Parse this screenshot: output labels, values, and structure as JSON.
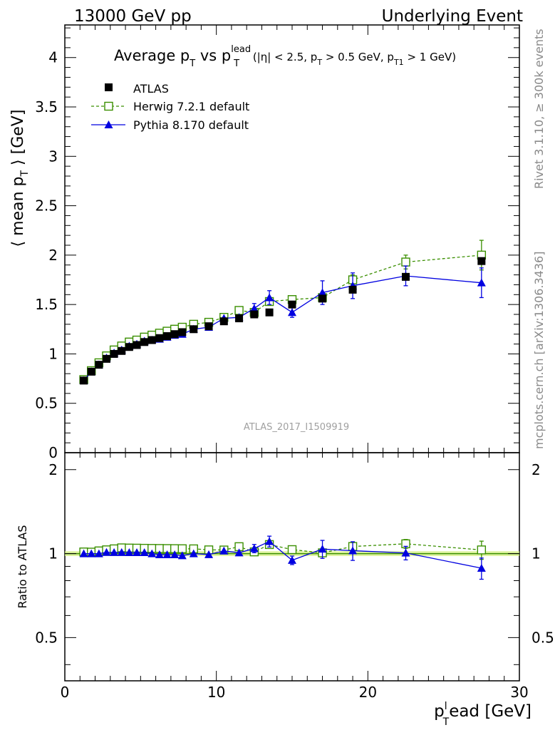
{
  "header": {
    "left": "13000 GeV pp",
    "right": "Underlying Event"
  },
  "plot_title": {
    "main": "Average p",
    "main_sub": "T",
    "vs": " vs p",
    "vs_sup": "lead",
    "vs_sub": "T",
    "cond_1": " (|η| < 2.5, p",
    "cond_sub1": "T",
    "cond_2": " > 0.5 GeV, p",
    "cond_sub2": "T1",
    "cond_3": " > 1 GeV)"
  },
  "watermark": "ATLAS_2017_I1509919",
  "side_text": {
    "rivet": "Rivet 3.1.10, ≥ 300k events",
    "mcplots": "mcplots.cern.ch [arXiv:1306.3436]"
  },
  "axes": {
    "ylabel_main_1": "⟨ mean p",
    "ylabel_main_sub": "T",
    "ylabel_main_2": " ⟩ [GeV]",
    "ylabel_ratio": "Ratio to ATLAS",
    "xlabel_1": "p",
    "xlabel_sup": "l",
    "xlabel_sub": "T",
    "xlabel_2": "ead [GeV]",
    "x_ticks": [
      "0",
      "10",
      "20",
      "30"
    ],
    "y_main_ticks": [
      "0",
      "0.5",
      "1",
      "1.5",
      "2",
      "2.5",
      "3",
      "3.5",
      "4"
    ],
    "y_ratio_ticks": [
      "0.5",
      "1",
      "2"
    ]
  },
  "legend": {
    "atlas": "ATLAS",
    "herwig": "Herwig 7.2.1 default",
    "pythia": "Pythia 8.170 default"
  },
  "colors": {
    "atlas": "#000000",
    "herwig": "#3a8f00",
    "pythia": "#0000e0",
    "band": "#d4f07a"
  },
  "chart_data": {
    "type": "scatter",
    "xlim": [
      0,
      30
    ],
    "ylim_main": [
      0,
      4.33
    ],
    "ylim_ratio": [
      0.35,
      2.3
    ],
    "log_ratio": true,
    "x": [
      1.25,
      1.75,
      2.25,
      2.75,
      3.25,
      3.75,
      4.25,
      4.75,
      5.25,
      5.75,
      6.25,
      6.75,
      7.25,
      7.75,
      8.5,
      9.5,
      10.5,
      11.5,
      12.5,
      13.5,
      15.0,
      17.0,
      19.0,
      22.5,
      27.5
    ],
    "series": [
      {
        "name": "ATLAS",
        "values": [
          0.73,
          0.82,
          0.89,
          0.95,
          1.0,
          1.03,
          1.07,
          1.09,
          1.12,
          1.14,
          1.16,
          1.18,
          1.2,
          1.22,
          1.25,
          1.28,
          1.33,
          1.36,
          1.4,
          1.42,
          1.5,
          1.56,
          1.65,
          1.78,
          1.94
        ]
      },
      {
        "name": "Herwig 7.2.1 default",
        "values": [
          0.74,
          0.83,
          0.91,
          0.98,
          1.04,
          1.08,
          1.12,
          1.14,
          1.17,
          1.19,
          1.21,
          1.23,
          1.25,
          1.27,
          1.3,
          1.32,
          1.37,
          1.44,
          1.42,
          1.53,
          1.55,
          1.57,
          1.75,
          1.93,
          2.0
        ],
        "errors": [
          0,
          0,
          0,
          0,
          0,
          0,
          0,
          0,
          0,
          0,
          0,
          0,
          0,
          0,
          0,
          0,
          0,
          0,
          0,
          0,
          0,
          0,
          0.05,
          0.07,
          0.15
        ]
      },
      {
        "name": "Pythia 8.170 default",
        "values": [
          0.73,
          0.82,
          0.89,
          0.96,
          1.01,
          1.04,
          1.08,
          1.1,
          1.13,
          1.14,
          1.15,
          1.17,
          1.19,
          1.2,
          1.25,
          1.27,
          1.36,
          1.37,
          1.46,
          1.57,
          1.42,
          1.62,
          1.69,
          1.79,
          1.72
        ],
        "errors": [
          0,
          0,
          0,
          0,
          0,
          0,
          0,
          0,
          0,
          0,
          0,
          0,
          0,
          0,
          0,
          0,
          0,
          0,
          0.05,
          0.07,
          0.05,
          0.12,
          0.13,
          0.1,
          0.15
        ]
      }
    ]
  }
}
